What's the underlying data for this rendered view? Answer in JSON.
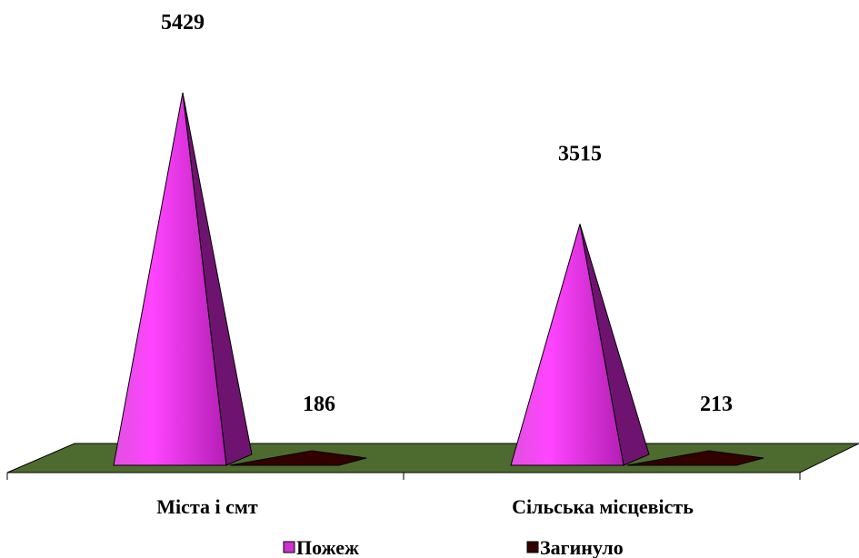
{
  "chart_data": {
    "type": "bar",
    "style": "3d-pyramid",
    "categories": [
      "Міста і смт",
      "Сільська місцевість"
    ],
    "series": [
      {
        "name": "Пожеж",
        "values": [
          5429,
          3515
        ],
        "color": "#cc33cc"
      },
      {
        "name": "Загинуло",
        "values": [
          186,
          213
        ],
        "color": "#330000"
      }
    ],
    "data_labels": [
      "5429",
      "186",
      "3515",
      "213"
    ],
    "floor_color": "#4d6b2e",
    "legend_position": "bottom",
    "grid": false
  }
}
